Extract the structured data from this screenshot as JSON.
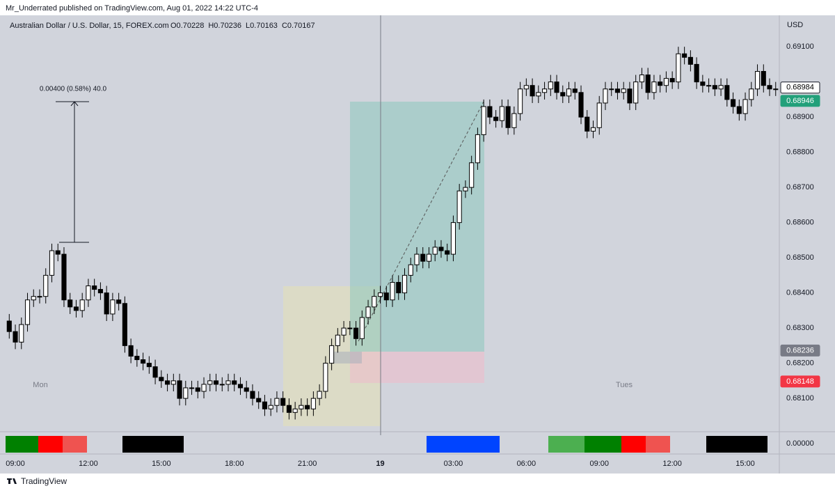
{
  "chart_data": {
    "type": "candlestick",
    "published": "Mr_Underrated published on TradingView.com, Aug 01, 2022 14:22 UTC-4",
    "title": "Australian Dollar / U.S. Dollar, 15, FOREX.com",
    "ohlc_header": [
      "O0.70228",
      "H0.70236",
      "L0.70163",
      "C0.70167"
    ],
    "currency": "USD",
    "footer": "TradingView",
    "measure_label": "0.00400 (0.58%) 40.0",
    "session_labels": [
      "Mon",
      "Tues"
    ],
    "grid": false,
    "xlim": [
      8.37,
      40.4
    ],
    "ylim": [
      0.68021,
      0.69233
    ],
    "xticks": [
      {
        "value": 9,
        "label": "09:00"
      },
      {
        "value": 12,
        "label": "12:00"
      },
      {
        "value": 15,
        "label": "15:00"
      },
      {
        "value": 18,
        "label": "18:00"
      },
      {
        "value": 21,
        "label": "21:00"
      },
      {
        "value": 24,
        "label": "19",
        "bold": true
      },
      {
        "value": 27,
        "label": "03:00"
      },
      {
        "value": 30,
        "label": "06:00"
      },
      {
        "value": 33,
        "label": "09:00"
      },
      {
        "value": 36,
        "label": "12:00"
      },
      {
        "value": 39,
        "label": "15:00"
      }
    ],
    "yticks": [
      {
        "value": 0.681,
        "label": "0.68100"
      },
      {
        "value": 0.682,
        "label": "0.68200"
      },
      {
        "value": 0.683,
        "label": "0.68300"
      },
      {
        "value": 0.684,
        "label": "0.68400"
      },
      {
        "value": 0.685,
        "label": "0.68500"
      },
      {
        "value": 0.686,
        "label": "0.68600"
      },
      {
        "value": 0.687,
        "label": "0.68700"
      },
      {
        "value": 0.688,
        "label": "0.68800"
      },
      {
        "value": 0.689,
        "label": "0.68900"
      },
      {
        "value": 0.691,
        "label": "0.69100"
      }
    ],
    "price_labels": [
      {
        "value": 0.68984,
        "label": "0.68984",
        "color": "#ffffff",
        "text_color": "#000000"
      },
      {
        "value": 0.68946,
        "label": "0.68946",
        "color": "#22a07a",
        "text_color": "#ffffff"
      },
      {
        "value": 0.68236,
        "label": "0.68236",
        "color": "#787b86",
        "text_color": "#ffffff"
      },
      {
        "value": 0.68148,
        "label": "0.68148",
        "color": "#f23645",
        "text_color": "#ffffff"
      }
    ],
    "indicator_tick": {
      "value": 0,
      "label": "0.00000"
    },
    "up_color": "#ffffff",
    "down_color": "#000000",
    "x": [
      8.75,
      9,
      9.25,
      9.5,
      9.75,
      10,
      10.25,
      10.5,
      10.75,
      11,
      11.25,
      11.5,
      11.75,
      12,
      12.25,
      12.5,
      12.75,
      13,
      13.25,
      13.5,
      13.75,
      14,
      14.25,
      14.5,
      14.75,
      15,
      15.25,
      15.5,
      15.75,
      16,
      16.25,
      16.5,
      16.75,
      17,
      17.25,
      17.5,
      17.75,
      18,
      18.25,
      18.5,
      18.75,
      19,
      19.25,
      19.5,
      19.75,
      20,
      20.25,
      20.5,
      20.75,
      21,
      21.25,
      21.5,
      21.75,
      22,
      22.25,
      22.5,
      22.75,
      23,
      23.25,
      23.5,
      23.75,
      24,
      24.25,
      24.5,
      24.75,
      25,
      25.25,
      25.5,
      25.75,
      26,
      26.25,
      26.5,
      26.75,
      27,
      27.25,
      27.5,
      27.75,
      28,
      28.25,
      28.5,
      28.75,
      29,
      29.25,
      29.5,
      29.75,
      30,
      30.25,
      30.5,
      30.75,
      31,
      31.25,
      31.5,
      31.75,
      32,
      32.25,
      32.5,
      32.75,
      33,
      33.25,
      33.5,
      33.75,
      34,
      34.25,
      34.5,
      34.75,
      35,
      35.25,
      35.5,
      35.75,
      36,
      36.25,
      36.5,
      36.75,
      37,
      37.25,
      37.5,
      37.75,
      38,
      38.25,
      38.5,
      38.75,
      39,
      39.25,
      39.5,
      39.75,
      40,
      40.25
    ],
    "open": [
      0.6832,
      0.6829,
      0.6826,
      0.6831,
      0.6838,
      0.6839,
      0.6839,
      0.6845,
      0.6852,
      0.6851,
      0.6838,
      0.6836,
      0.6835,
      0.6838,
      0.6842,
      0.6841,
      0.684,
      0.6834,
      0.6838,
      0.6837,
      0.6825,
      0.6822,
      0.6821,
      0.682,
      0.6819,
      0.6816,
      0.6815,
      0.6814,
      0.6815,
      0.681,
      0.6813,
      0.6813,
      0.6812,
      0.6814,
      0.6815,
      0.6814,
      0.6814,
      0.6815,
      0.6814,
      0.6813,
      0.6812,
      0.681,
      0.6809,
      0.6807,
      0.6808,
      0.681,
      0.6808,
      0.6806,
      0.6807,
      0.6808,
      0.6807,
      0.681,
      0.6812,
      0.682,
      0.6825,
      0.6828,
      0.683,
      0.683,
      0.6827,
      0.6833,
      0.6836,
      0.6839,
      0.684,
      0.6838,
      0.6843,
      0.684,
      0.6845,
      0.6848,
      0.6851,
      0.6849,
      0.6851,
      0.6853,
      0.6852,
      0.6851,
      0.686,
      0.6869,
      0.687,
      0.6877,
      0.6885,
      0.6893,
      0.689,
      0.6889,
      0.6893,
      0.6887,
      0.6891,
      0.6898,
      0.6899,
      0.6896,
      0.6897,
      0.6898,
      0.69,
      0.6897,
      0.6896,
      0.6898,
      0.6897,
      0.689,
      0.6886,
      0.6887,
      0.6894,
      0.6898,
      0.6898,
      0.6897,
      0.6898,
      0.6894,
      0.69,
      0.6902,
      0.6897,
      0.69,
      0.6899,
      0.6901,
      0.69,
      0.6908,
      0.6907,
      0.6905,
      0.69,
      0.6899,
      0.6899,
      0.6898,
      0.6899,
      0.6895,
      0.6893,
      0.6891,
      0.6895,
      0.6898,
      0.6903,
      0.6899,
      0.6898
    ],
    "high": [
      0.6834,
      0.6831,
      0.6833,
      0.684,
      0.6841,
      0.6841,
      0.6847,
      0.6854,
      0.6854,
      0.6853,
      0.684,
      0.6838,
      0.684,
      0.6844,
      0.6844,
      0.6843,
      0.6842,
      0.684,
      0.684,
      0.6839,
      0.6827,
      0.6824,
      0.6823,
      0.6822,
      0.6821,
      0.6818,
      0.6817,
      0.6817,
      0.6817,
      0.6815,
      0.6815,
      0.6815,
      0.6816,
      0.6817,
      0.6817,
      0.6816,
      0.6817,
      0.6817,
      0.6816,
      0.6815,
      0.6814,
      0.6812,
      0.6811,
      0.681,
      0.6812,
      0.6812,
      0.681,
      0.6809,
      0.681,
      0.681,
      0.6812,
      0.6814,
      0.6822,
      0.6827,
      0.683,
      0.6832,
      0.6832,
      0.6832,
      0.6835,
      0.6838,
      0.6841,
      0.6842,
      0.6842,
      0.6845,
      0.6845,
      0.6847,
      0.685,
      0.6853,
      0.6853,
      0.6853,
      0.6855,
      0.6855,
      0.6854,
      0.6862,
      0.6871,
      0.6872,
      0.6879,
      0.6887,
      0.6895,
      0.6895,
      0.6892,
      0.6895,
      0.6895,
      0.6893,
      0.69,
      0.6901,
      0.6901,
      0.6899,
      0.69,
      0.6902,
      0.6902,
      0.6899,
      0.69,
      0.69,
      0.6899,
      0.6892,
      0.6889,
      0.6896,
      0.69,
      0.69,
      0.69,
      0.69,
      0.69,
      0.6902,
      0.6904,
      0.6904,
      0.6902,
      0.6902,
      0.6903,
      0.6903,
      0.691,
      0.691,
      0.6909,
      0.6907,
      0.6902,
      0.6901,
      0.6901,
      0.6901,
      0.6901,
      0.6897,
      0.6895,
      0.6897,
      0.69,
      0.6905,
      0.6905,
      0.6901,
      0.69
    ],
    "low": [
      0.6827,
      0.6824,
      0.6824,
      0.6829,
      0.6836,
      0.6837,
      0.6837,
      0.6843,
      0.6849,
      0.6836,
      0.6834,
      0.6833,
      0.6833,
      0.6836,
      0.6839,
      0.6838,
      0.6832,
      0.6832,
      0.6835,
      0.6823,
      0.682,
      0.6819,
      0.6818,
      0.6817,
      0.6814,
      0.6813,
      0.6812,
      0.6812,
      0.6808,
      0.6808,
      0.6811,
      0.681,
      0.681,
      0.6812,
      0.6812,
      0.6812,
      0.6812,
      0.6812,
      0.6811,
      0.681,
      0.6808,
      0.6807,
      0.6805,
      0.6805,
      0.6806,
      0.6806,
      0.6804,
      0.6804,
      0.6805,
      0.6805,
      0.6805,
      0.6808,
      0.681,
      0.6818,
      0.6823,
      0.6826,
      0.6828,
      0.6825,
      0.6825,
      0.6831,
      0.6834,
      0.6837,
      0.6836,
      0.6836,
      0.6838,
      0.6838,
      0.6843,
      0.6846,
      0.6847,
      0.6847,
      0.6849,
      0.685,
      0.6849,
      0.6849,
      0.6858,
      0.6867,
      0.6868,
      0.6875,
      0.6883,
      0.6888,
      0.6887,
      0.6887,
      0.6885,
      0.6885,
      0.6889,
      0.6896,
      0.6894,
      0.6894,
      0.6895,
      0.6896,
      0.6895,
      0.6894,
      0.6894,
      0.6895,
      0.6888,
      0.6884,
      0.6884,
      0.6885,
      0.6892,
      0.6896,
      0.6895,
      0.6895,
      0.6892,
      0.6892,
      0.6898,
      0.6895,
      0.6895,
      0.6897,
      0.6897,
      0.6898,
      0.6898,
      0.6905,
      0.6903,
      0.6898,
      0.6897,
      0.6897,
      0.6896,
      0.6896,
      0.6893,
      0.6891,
      0.6889,
      0.6889,
      0.6893,
      0.6896,
      0.6897,
      0.6896,
      0.6896
    ],
    "close": [
      0.6829,
      0.6826,
      0.6831,
      0.6838,
      0.6839,
      0.6839,
      0.6845,
      0.6852,
      0.6851,
      0.6838,
      0.6836,
      0.6835,
      0.6838,
      0.6842,
      0.6841,
      0.684,
      0.6834,
      0.6838,
      0.6837,
      0.6825,
      0.6822,
      0.6821,
      0.682,
      0.6819,
      0.6816,
      0.6815,
      0.6814,
      0.6815,
      0.681,
      0.6813,
      0.6813,
      0.6812,
      0.6814,
      0.6815,
      0.6814,
      0.6814,
      0.6815,
      0.6814,
      0.6813,
      0.6812,
      0.681,
      0.6809,
      0.6807,
      0.6808,
      0.681,
      0.6808,
      0.6806,
      0.6807,
      0.6808,
      0.6807,
      0.681,
      0.6812,
      0.682,
      0.6825,
      0.6828,
      0.683,
      0.683,
      0.6827,
      0.6833,
      0.6836,
      0.6839,
      0.684,
      0.6838,
      0.6843,
      0.684,
      0.6845,
      0.6848,
      0.6851,
      0.6849,
      0.6851,
      0.6853,
      0.6852,
      0.6851,
      0.686,
      0.6869,
      0.687,
      0.6877,
      0.6885,
      0.6893,
      0.689,
      0.6889,
      0.6893,
      0.6887,
      0.6891,
      0.6898,
      0.6899,
      0.6896,
      0.6897,
      0.6898,
      0.69,
      0.6897,
      0.6896,
      0.6898,
      0.6897,
      0.689,
      0.6886,
      0.6887,
      0.6894,
      0.6898,
      0.6898,
      0.6897,
      0.6898,
      0.6894,
      0.69,
      0.6902,
      0.6897,
      0.69,
      0.6899,
      0.6901,
      0.69,
      0.6908,
      0.6907,
      0.6905,
      0.69,
      0.6899,
      0.6899,
      0.6898,
      0.6899,
      0.6895,
      0.6893,
      0.6891,
      0.6895,
      0.6898,
      0.6903,
      0.6899,
      0.6898,
      0.6898
    ]
  }
}
